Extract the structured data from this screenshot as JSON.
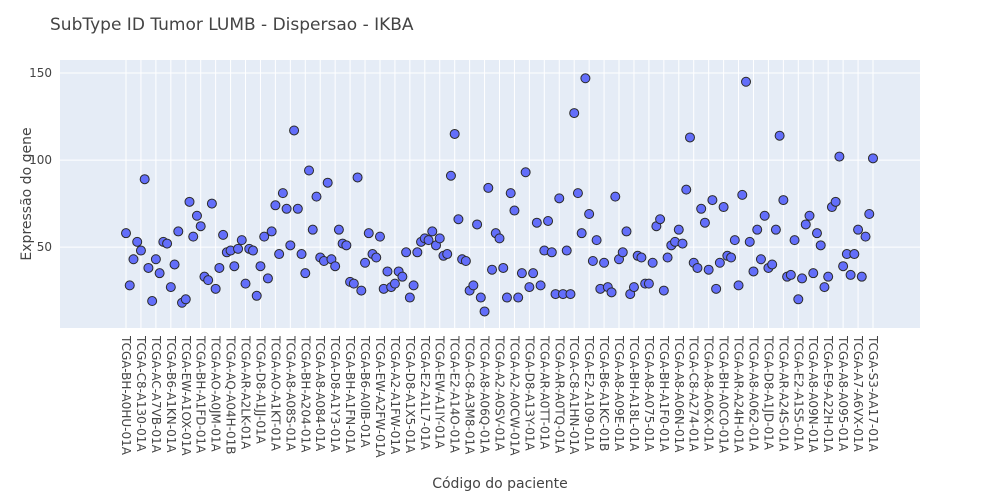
{
  "chart_data": {
    "type": "scatter",
    "title": "SubType ID Tumor LUMB - Dispersao - IKBA",
    "x_label": "Código do paciente",
    "y_label": "Expressão do gene",
    "color": "#636efa",
    "grid": true,
    "ylim": [
      3.5,
      157.5
    ],
    "yticks": [
      50,
      100,
      150
    ],
    "categories": [
      "TCGA-BH-A0HU-01A",
      null,
      null,
      null,
      "TCGA-C8-A130-01A",
      null,
      null,
      null,
      "TCGA-AC-A7VB-01A",
      null,
      null,
      null,
      "TCGA-B6-A1KN-01A",
      null,
      null,
      null,
      "TCGA-EW-A1OX-01A",
      null,
      null,
      null,
      "TCGA-BH-A1FD-01A",
      null,
      null,
      null,
      "TCGA-AO-A0JM-01A",
      null,
      null,
      null,
      "TCGA-AQ-A04H-01B",
      null,
      null,
      null,
      "TCGA-AR-A2LK-01A",
      null,
      null,
      null,
      "TCGA-D8-A1JJ-01A",
      null,
      null,
      null,
      "TCGA-AO-A1KT-01A",
      null,
      null,
      null,
      "TCGA-A8-A08S-01A",
      null,
      null,
      null,
      "TCGA-BH-A204-01A",
      null,
      null,
      null,
      "TCGA-A8-A084-01A",
      null,
      null,
      null,
      "TCGA-D8-A1Y3-01A",
      null,
      null,
      null,
      "TCGA-BH-A1FN-01A",
      null,
      null,
      null,
      "TCGA-B6-A0IB-01A",
      null,
      null,
      null,
      "TCGA-EW-A2FW-01A",
      null,
      null,
      null,
      "TCGA-A2-A1FW-01A",
      null,
      null,
      null,
      "TCGA-D8-A1X5-01A",
      null,
      null,
      null,
      "TCGA-E2-A1L7-01A",
      null,
      null,
      null,
      "TCGA-EW-A1IY-01A",
      null,
      null,
      null,
      "TCGA-E2-A14O-01A",
      null,
      null,
      null,
      "TCGA-C8-A3M8-01A",
      null,
      null,
      null,
      "TCGA-A8-A06Q-01A",
      null,
      null,
      null,
      "TCGA-A2-A0SV-01A",
      null,
      null,
      null,
      "TCGA-A2-A0CW-01A",
      null,
      null,
      null,
      "TCGA-D8-A13Y-01A",
      null,
      null,
      null,
      "TCGA-AR-A0TT-01A",
      null,
      null,
      null,
      "TCGA-AR-A0TQ-01A",
      null,
      null,
      null,
      "TCGA-C8-A1HN-01A",
      null,
      null,
      null,
      "TCGA-E2-A109-01A",
      null,
      null,
      null,
      "TCGA-B6-A1KC-01B",
      null,
      null,
      null,
      "TCGA-A8-A09E-01A",
      null,
      null,
      null,
      "TCGA-BH-A18L-01A",
      null,
      null,
      null,
      "TCGA-A8-A075-01A",
      null,
      null,
      null,
      "TCGA-BH-A1F0-01A",
      null,
      null,
      null,
      "TCGA-A8-A06N-01A",
      null,
      null,
      null,
      "TCGA-C8-A274-01A",
      null,
      null,
      null,
      "TCGA-A8-A06X-01A",
      null,
      null,
      null,
      "TCGA-BH-A0C0-01A",
      null,
      null,
      null,
      "TCGA-AR-A24H-01A",
      null,
      null,
      null,
      "TCGA-A8-A062-01A",
      null,
      null,
      null,
      "TCGA-D8-A1JD-01A",
      null,
      null,
      null,
      "TCGA-AR-A24S-01A",
      null,
      null,
      null,
      "TCGA-E2-A1S5-01A",
      null,
      null,
      null,
      "TCGA-A8-A09N-01A",
      null,
      null,
      null,
      "TCGA-E9-A22H-01A",
      null,
      null,
      null,
      "TCGA-A8-A095-01A",
      null,
      null,
      null,
      "TCGA-A7-A6VX-01A",
      null,
      null,
      null,
      "TCGA-S3-AA17-01A"
    ],
    "values": [
      58,
      28,
      43,
      53,
      48,
      89,
      38,
      19,
      43,
      35,
      53,
      52,
      27,
      40,
      59,
      18,
      20,
      76,
      56,
      68,
      62,
      33,
      31,
      75,
      26,
      38,
      57,
      47,
      48,
      39,
      49,
      54,
      29,
      49,
      48,
      22,
      39,
      56,
      32,
      59,
      74,
      46,
      81,
      72,
      51,
      117,
      72,
      46,
      35,
      94,
      60,
      79,
      44,
      42,
      87,
      43,
      39,
      60,
      52,
      51,
      30,
      29,
      90,
      25,
      41,
      58,
      46,
      44,
      56,
      26,
      36,
      27,
      29,
      36,
      33,
      47,
      21,
      28,
      47,
      53,
      55,
      54,
      59,
      51,
      55,
      45,
      46,
      91,
      115,
      66,
      43,
      42,
      25,
      28,
      63,
      21,
      13,
      84,
      37,
      58,
      55,
      38,
      21,
      81,
      71,
      21,
      35,
      93,
      27,
      35,
      64,
      28,
      48,
      65,
      47,
      23,
      78,
      23,
      48,
      23,
      127,
      81,
      58,
      147,
      69,
      42,
      54,
      26,
      41,
      27,
      24,
      79,
      43,
      47,
      59,
      23,
      27,
      45,
      44,
      29,
      29,
      41,
      62,
      66,
      25,
      44,
      51,
      53,
      60,
      52,
      83,
      113,
      41,
      38,
      72,
      64,
      37,
      77,
      26,
      41,
      73,
      45,
      44,
      54,
      28,
      80,
      145,
      53,
      36,
      60,
      43,
      68,
      38,
      40,
      60,
      114,
      77,
      33,
      34,
      54,
      20,
      32,
      63,
      68,
      35,
      58,
      51,
      27,
      33,
      73,
      76,
      102,
      39,
      46,
      34,
      46,
      60,
      33,
      56,
      69,
      101
    ]
  }
}
